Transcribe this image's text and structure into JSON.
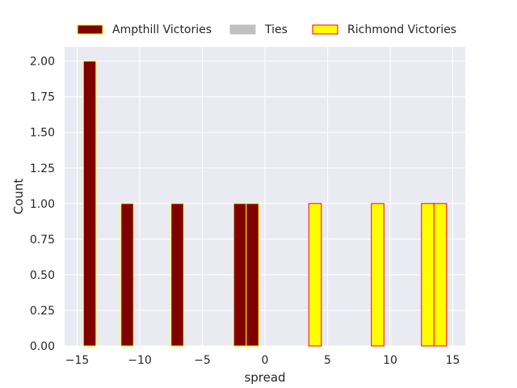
{
  "chart_data": {
    "type": "bar",
    "subtype": "histogram",
    "xlabel": "spread",
    "ylabel": "Count",
    "xlim": [
      -16,
      16
    ],
    "ylim": [
      0,
      2.1
    ],
    "x_ticks": [
      -15,
      -10,
      -5,
      0,
      5,
      10,
      15
    ],
    "x_tick_labels": [
      "−15",
      "−10",
      "−5",
      "0",
      "5",
      "10",
      "15"
    ],
    "y_ticks": [
      0,
      0.25,
      0.5,
      0.75,
      1.0,
      1.25,
      1.5,
      1.75,
      2.0
    ],
    "y_tick_labels": [
      "0.00",
      "0.25",
      "0.50",
      "0.75",
      "1.00",
      "1.25",
      "1.50",
      "1.75",
      "2.00"
    ],
    "grid": true,
    "legend_position": "top",
    "series": [
      {
        "name": "Ampthill Victories",
        "fill": "#800000",
        "edge": "#ffff00",
        "bars": [
          {
            "x0": -14.5,
            "x1": -13.5,
            "count": 2
          },
          {
            "x0": -11.5,
            "x1": -10.5,
            "count": 1
          },
          {
            "x0": -7.5,
            "x1": -6.5,
            "count": 1
          },
          {
            "x0": -2.5,
            "x1": -1.5,
            "count": 1
          },
          {
            "x0": -1.5,
            "x1": -0.5,
            "count": 1
          }
        ]
      },
      {
        "name": "Ties",
        "fill": "#c0c0c0",
        "edge": "#c0c0c0",
        "bars": []
      },
      {
        "name": "Richmond Victories",
        "fill": "#ffff00",
        "edge": "#ff0000",
        "bars": [
          {
            "x0": 3.5,
            "x1": 4.5,
            "count": 1
          },
          {
            "x0": 8.5,
            "x1": 9.5,
            "count": 1
          },
          {
            "x0": 12.5,
            "x1": 13.5,
            "count": 1
          },
          {
            "x0": 13.5,
            "x1": 14.5,
            "count": 1
          }
        ]
      }
    ]
  }
}
